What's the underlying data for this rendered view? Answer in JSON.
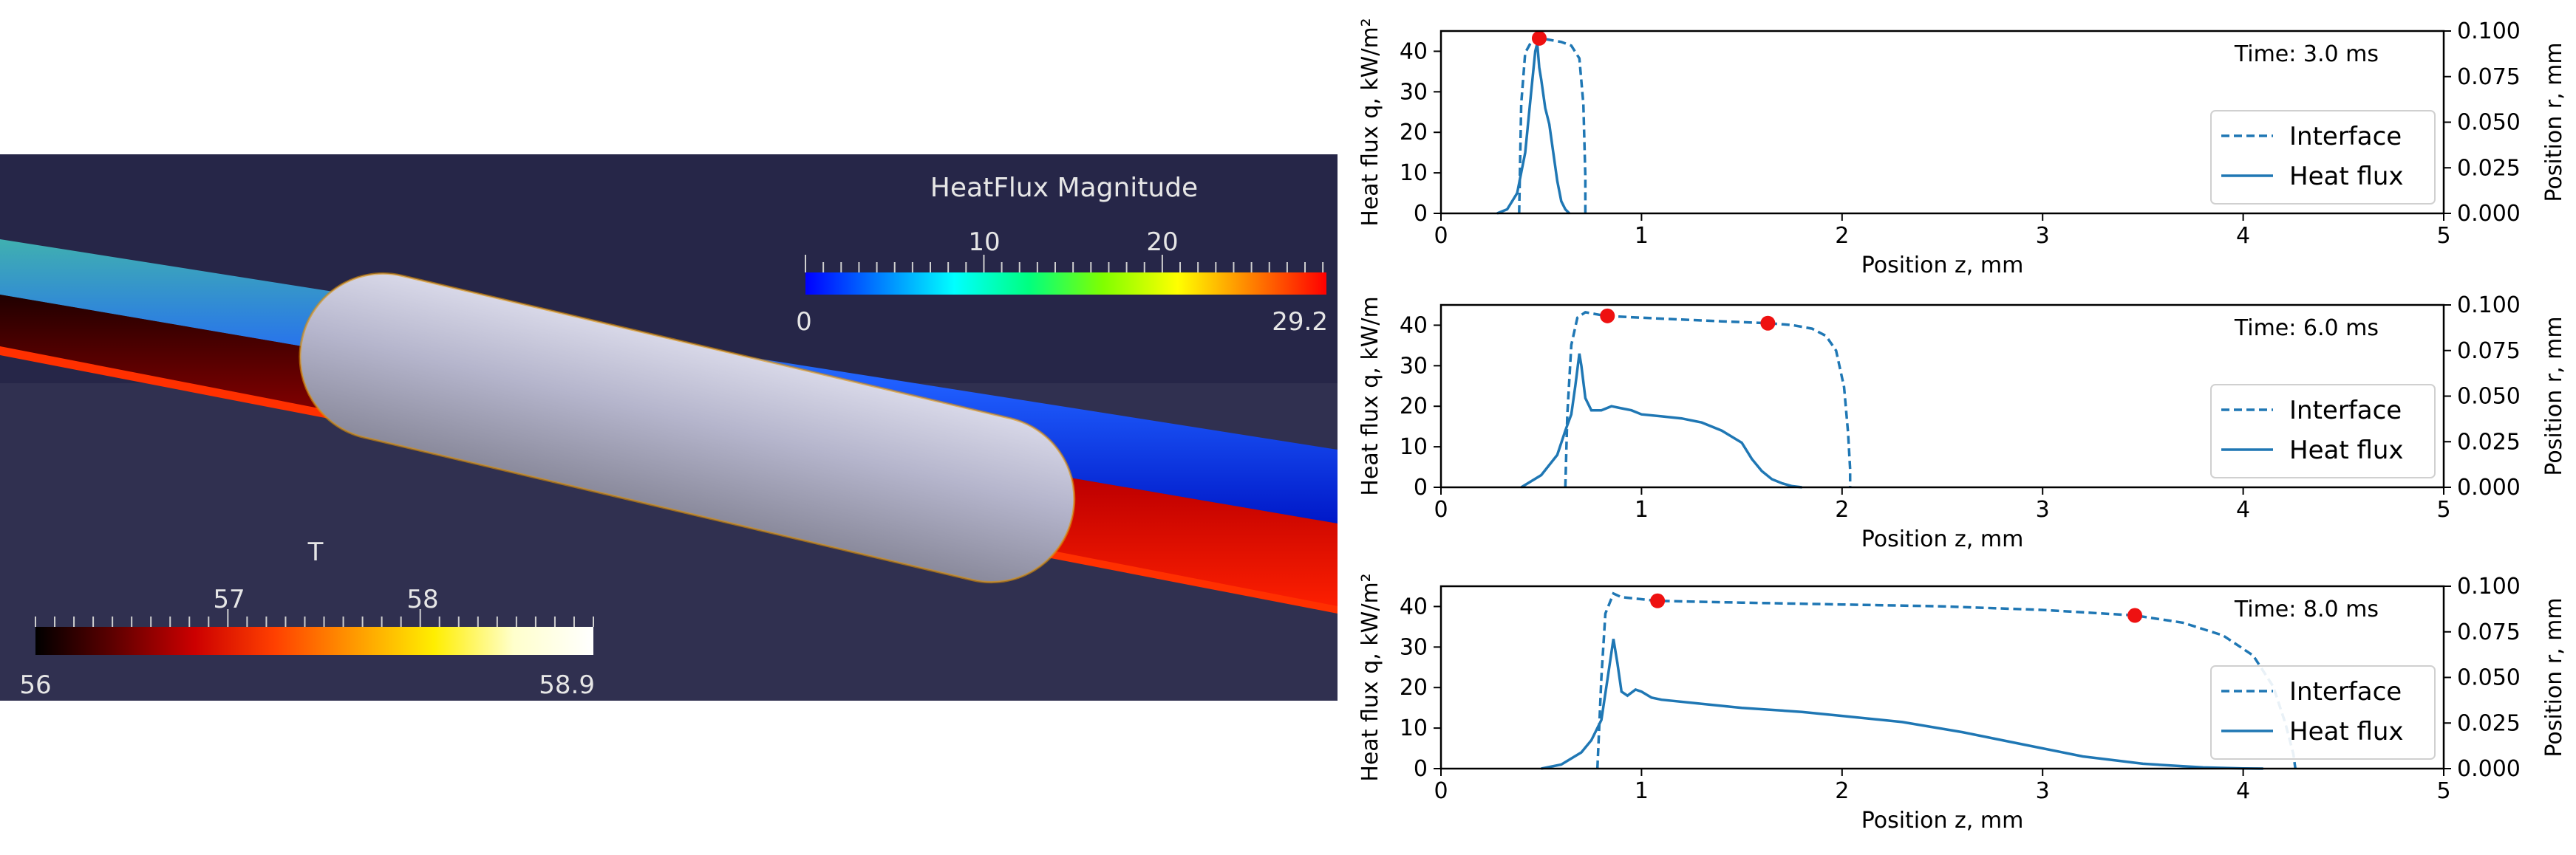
{
  "visualization": {
    "heatflux_bar": {
      "title": "HeatFlux Magnitude",
      "ticks": [
        "10",
        "20"
      ],
      "min_label": "0",
      "max_label": "29.2",
      "colors": [
        "#0000ff",
        "#0080ff",
        "#00ffff",
        "#00ff80",
        "#80ff00",
        "#ffff00",
        "#ff8000",
        "#ff0000"
      ]
    },
    "temp_bar": {
      "title": "T",
      "ticks": [
        "57",
        "58"
      ],
      "min_label": "56",
      "max_label": "58.9",
      "colors": [
        "#000000",
        "#600000",
        "#cc0000",
        "#ff4000",
        "#ff9900",
        "#ffee00",
        "#ffffcc",
        "#ffffff"
      ]
    },
    "background": "#26264a"
  },
  "chart_data": [
    {
      "type": "line",
      "annotation": "Time: 3.0 ms",
      "xlabel": "Position z, mm",
      "ylabel": "Heat flux q, kW/m²",
      "y2label": "Position r, mm",
      "xlim": [
        0,
        5
      ],
      "ylim": [
        0,
        45
      ],
      "y2lim": [
        0,
        0.1
      ],
      "xticks": [
        "0",
        "1",
        "2",
        "3",
        "4",
        "5"
      ],
      "yticks": [
        "0",
        "10",
        "20",
        "30",
        "40"
      ],
      "y2ticks": [
        "0.000",
        "0.025",
        "0.050",
        "0.075",
        "0.100"
      ],
      "legend": {
        "position": "lower-right",
        "entries": [
          "Interface",
          "Heat flux"
        ]
      },
      "series": [
        {
          "name": "Interface",
          "axis": "right",
          "style": "dashed",
          "x": [
            0.39,
            0.4,
            0.42,
            0.45,
            0.5,
            0.55,
            0.6,
            0.65,
            0.69,
            0.71,
            0.72,
            0.72
          ],
          "y": [
            0.0,
            0.06,
            0.088,
            0.094,
            0.096,
            0.095,
            0.094,
            0.092,
            0.085,
            0.06,
            0.02,
            0.0
          ]
        },
        {
          "name": "Heat flux",
          "axis": "left",
          "style": "solid",
          "x": [
            0.28,
            0.33,
            0.38,
            0.42,
            0.45,
            0.47,
            0.48,
            0.49,
            0.5,
            0.52,
            0.54,
            0.56,
            0.58,
            0.6,
            0.62,
            0.64
          ],
          "y": [
            0,
            1,
            5,
            15,
            30,
            40,
            42,
            36,
            33,
            26,
            22,
            15,
            8,
            3,
            1,
            0
          ]
        }
      ],
      "markers": [
        {
          "x": 0.49,
          "y2": 0.096
        }
      ]
    },
    {
      "type": "line",
      "annotation": "Time: 6.0 ms",
      "xlabel": "Position z, mm",
      "ylabel": "Heat flux q, kW/m",
      "y2label": "Position r, mm",
      "xlim": [
        0,
        5
      ],
      "ylim": [
        0,
        45
      ],
      "y2lim": [
        0,
        0.1
      ],
      "xticks": [
        "0",
        "1",
        "2",
        "3",
        "4",
        "5"
      ],
      "yticks": [
        "0",
        "10",
        "20",
        "30",
        "40"
      ],
      "y2ticks": [
        "0.000",
        "0.025",
        "0.050",
        "0.075",
        "0.100"
      ],
      "legend": {
        "position": "lower-right",
        "entries": [
          "Interface",
          "Heat flux"
        ]
      },
      "series": [
        {
          "name": "Interface",
          "axis": "right",
          "style": "dashed",
          "x": [
            0.62,
            0.63,
            0.65,
            0.68,
            0.72,
            0.82,
            1.0,
            1.2,
            1.4,
            1.63,
            1.75,
            1.85,
            1.92,
            1.97,
            2.01,
            2.03,
            2.04,
            2.04
          ],
          "y": [
            0.0,
            0.04,
            0.078,
            0.093,
            0.096,
            0.094,
            0.093,
            0.092,
            0.091,
            0.09,
            0.089,
            0.087,
            0.083,
            0.075,
            0.055,
            0.03,
            0.01,
            0.0
          ]
        },
        {
          "name": "Heat flux",
          "axis": "left",
          "style": "solid",
          "x": [
            0.4,
            0.5,
            0.58,
            0.62,
            0.65,
            0.67,
            0.69,
            0.7,
            0.72,
            0.75,
            0.8,
            0.85,
            0.9,
            0.95,
            1.0,
            1.1,
            1.2,
            1.3,
            1.4,
            1.5,
            1.55,
            1.6,
            1.65,
            1.7,
            1.75,
            1.8
          ],
          "y": [
            0,
            3,
            8,
            14,
            18,
            25,
            33,
            30,
            22,
            19,
            19,
            20,
            19.5,
            19,
            18,
            17.5,
            17,
            16,
            14,
            11,
            7,
            4,
            2,
            1,
            0.3,
            0
          ]
        }
      ],
      "markers": [
        {
          "x": 0.83,
          "y2": 0.094
        },
        {
          "x": 1.63,
          "y2": 0.09
        }
      ]
    },
    {
      "type": "line",
      "annotation": "Time: 8.0 ms",
      "xlabel": "Position z, mm",
      "ylabel": "Heat flux q, kW/m²",
      "y2label": "Position r, mm",
      "xlim": [
        0,
        5
      ],
      "ylim": [
        0,
        45
      ],
      "y2lim": [
        0,
        0.1
      ],
      "xticks": [
        "0",
        "1",
        "2",
        "3",
        "4",
        "5"
      ],
      "yticks": [
        "0",
        "10",
        "20",
        "30",
        "40"
      ],
      "y2ticks": [
        "0.000",
        "0.025",
        "0.050",
        "0.075",
        "0.100"
      ],
      "legend": {
        "position": "lower-right",
        "entries": [
          "Interface",
          "Heat flux"
        ]
      },
      "series": [
        {
          "name": "Interface",
          "axis": "right",
          "style": "dashed",
          "x": [
            0.78,
            0.8,
            0.82,
            0.86,
            0.9,
            1.08,
            1.5,
            2.0,
            2.5,
            3.0,
            3.46,
            3.7,
            3.9,
            4.05,
            4.15,
            4.21,
            4.25,
            4.26
          ],
          "y": [
            0.0,
            0.05,
            0.085,
            0.096,
            0.094,
            0.092,
            0.091,
            0.09,
            0.089,
            0.087,
            0.084,
            0.08,
            0.073,
            0.062,
            0.045,
            0.025,
            0.008,
            0.0
          ]
        },
        {
          "name": "Heat flux",
          "axis": "left",
          "style": "solid",
          "x": [
            0.5,
            0.6,
            0.7,
            0.75,
            0.8,
            0.83,
            0.86,
            0.88,
            0.9,
            0.93,
            0.97,
            1.0,
            1.05,
            1.1,
            1.3,
            1.5,
            1.8,
            2.0,
            2.3,
            2.6,
            2.9,
            3.2,
            3.5,
            3.8,
            4.0,
            4.1
          ],
          "y": [
            0,
            1,
            4,
            7,
            12,
            22,
            32,
            26,
            19,
            18,
            19.5,
            19,
            17.5,
            17,
            16,
            15,
            14,
            13,
            11.5,
            9,
            6,
            3,
            1.2,
            0.3,
            0.05,
            0
          ]
        }
      ],
      "markers": [
        {
          "x": 1.08,
          "y2": 0.092
        },
        {
          "x": 3.46,
          "y2": 0.084
        }
      ]
    }
  ]
}
